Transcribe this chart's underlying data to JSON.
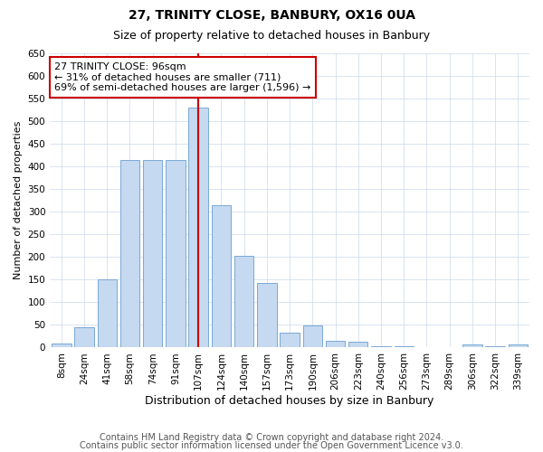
{
  "title": "27, TRINITY CLOSE, BANBURY, OX16 0UA",
  "subtitle": "Size of property relative to detached houses in Banbury",
  "xlabel": "Distribution of detached houses by size in Banbury",
  "ylabel": "Number of detached properties",
  "categories": [
    "8sqm",
    "24sqm",
    "41sqm",
    "58sqm",
    "74sqm",
    "91sqm",
    "107sqm",
    "124sqm",
    "140sqm",
    "157sqm",
    "173sqm",
    "190sqm",
    "206sqm",
    "223sqm",
    "240sqm",
    "256sqm",
    "273sqm",
    "289sqm",
    "306sqm",
    "322sqm",
    "339sqm"
  ],
  "values": [
    8,
    45,
    150,
    415,
    415,
    415,
    530,
    315,
    203,
    142,
    33,
    48,
    15,
    12,
    2,
    2,
    0,
    0,
    6,
    2,
    7
  ],
  "bar_color": "#c5d9f0",
  "bar_edge_color": "#7aa8d4",
  "vline_x": 6.0,
  "vline_color": "#cc0000",
  "annotation_text": "27 TRINITY CLOSE: 96sqm\n← 31% of detached houses are smaller (711)\n69% of semi-detached houses are larger (1,596) →",
  "annotation_box_color": "#ffffff",
  "annotation_box_edge_color": "#cc0000",
  "ylim": [
    0,
    650
  ],
  "yticks": [
    0,
    50,
    100,
    150,
    200,
    250,
    300,
    350,
    400,
    450,
    500,
    550,
    600,
    650
  ],
  "footer_line1": "Contains HM Land Registry data © Crown copyright and database right 2024.",
  "footer_line2": "Contains public sector information licensed under the Open Government Licence v3.0.",
  "bg_color": "#ffffff",
  "grid_color": "#ccd9eb",
  "title_fontsize": 10,
  "subtitle_fontsize": 9,
  "annotation_fontsize": 8,
  "footer_fontsize": 7,
  "tick_fontsize": 7.5,
  "ylabel_fontsize": 8,
  "xlabel_fontsize": 9
}
